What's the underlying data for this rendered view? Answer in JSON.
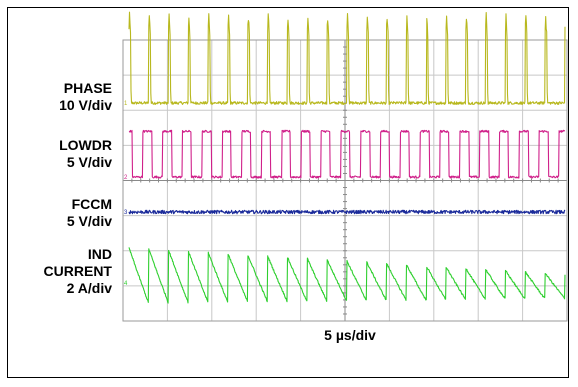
{
  "chart_data": {
    "type": "line",
    "title": "",
    "xlabel": "5 µs/div",
    "ylabel": "",
    "grid": true,
    "divisions": {
      "x": 10,
      "y": 8
    },
    "series": [
      {
        "name": "PHASE",
        "scale": "10 V/div",
        "color": "#b8b81e",
        "marker": "1",
        "low_level": 0.0,
        "pulse_peak": 2.5,
        "pulse_count": 22,
        "duty": 0.08
      },
      {
        "name": "LOWDR",
        "scale": "5 V/div",
        "color": "#d0208a",
        "marker": "2",
        "low_level": 0.0,
        "high_level": 1.3,
        "pulse_count": 22,
        "duty": 0.45
      },
      {
        "name": "FCCM",
        "scale": "5 V/div",
        "color": "#1a2a9a",
        "marker": "3",
        "level": 0.0
      },
      {
        "name": "IND CURRENT",
        "scale": "2 A/div",
        "color": "#2ecf2e",
        "marker": "4",
        "sawtooth_periods": 22,
        "ripple_start": 1.6,
        "ripple_end": 0.7,
        "mean_start": 0.2,
        "mean_end": -0.1
      }
    ]
  },
  "labels": {
    "phase": [
      "PHASE",
      "10 V/div"
    ],
    "lowdr": [
      "LOWDR",
      "5 V/div"
    ],
    "fccm": [
      "FCCM",
      "5 V/div"
    ],
    "ind": [
      "IND",
      "CURRENT",
      "2 A/div"
    ],
    "timebase": "5 µs/div"
  }
}
